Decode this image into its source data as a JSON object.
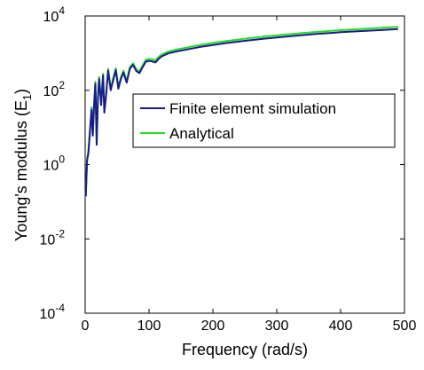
{
  "chart_data": {
    "type": "line",
    "title": "",
    "xlabel": "Frequency (rad/s)",
    "ylabel_main": "Young's modulus (E",
    "ylabel_sub": "1",
    "ylabel_close": ")",
    "xlim": [
      0,
      500
    ],
    "ylim": [
      0.0001,
      10000
    ],
    "yscale": "log",
    "grid": false,
    "legend_placement": "center-right",
    "x_ticks": [
      0,
      100,
      200,
      300,
      400,
      500
    ],
    "x_tick_labels": [
      "0",
      "100",
      "200",
      "300",
      "400",
      "500"
    ],
    "y_ticks": [
      {
        "value": 0.0001,
        "base": "10",
        "exp": "-4"
      },
      {
        "value": 0.01,
        "base": "10",
        "exp": "-2"
      },
      {
        "value": 1,
        "base": "10",
        "exp": "0"
      },
      {
        "value": 100,
        "base": "10",
        "exp": "2"
      },
      {
        "value": 10000,
        "base": "10",
        "exp": "4"
      }
    ],
    "series": [
      {
        "name": "Finite element simulation",
        "color": "#1a1a8c",
        "x": [
          1,
          3,
          5,
          8,
          10,
          12,
          14,
          16,
          18,
          20,
          22,
          25,
          28,
          30,
          33,
          36,
          40,
          44,
          48,
          52,
          56,
          60,
          65,
          70,
          75,
          80,
          85,
          90,
          95,
          100,
          105,
          110,
          115,
          120,
          130,
          140,
          150,
          160,
          170,
          180,
          200,
          220,
          250,
          280,
          300,
          330,
          360,
          400,
          430,
          460,
          490
        ],
        "y": [
          0.14,
          1.3,
          2.0,
          10,
          30,
          6,
          40,
          150,
          3.4,
          60,
          200,
          40,
          250,
          25,
          80,
          340,
          100,
          190,
          350,
          110,
          200,
          300,
          160,
          380,
          480,
          330,
          290,
          420,
          590,
          620,
          600,
          560,
          700,
          820,
          980,
          1080,
          1170,
          1260,
          1360,
          1470,
          1660,
          1860,
          2150,
          2450,
          2650,
          2950,
          3250,
          3650,
          3900,
          4150,
          4450
        ]
      },
      {
        "name": "Analytical",
        "color": "#22dd22",
        "x": [
          1,
          3,
          5,
          8,
          10,
          12,
          14,
          16,
          18,
          20,
          22,
          25,
          28,
          30,
          33,
          36,
          40,
          44,
          48,
          52,
          56,
          60,
          65,
          70,
          75,
          80,
          85,
          90,
          95,
          100,
          105,
          110,
          115,
          120,
          130,
          140,
          150,
          160,
          170,
          180,
          200,
          220,
          250,
          280,
          300,
          330,
          360,
          400,
          430,
          460,
          490
        ],
        "y": [
          0.15,
          1.5,
          2.3,
          12,
          35,
          7,
          45,
          170,
          4.0,
          70,
          230,
          45,
          280,
          30,
          90,
          380,
          115,
          215,
          390,
          125,
          225,
          340,
          180,
          420,
          530,
          370,
          320,
          470,
          660,
          700,
          680,
          640,
          800,
          920,
          1100,
          1220,
          1320,
          1420,
          1540,
          1660,
          1880,
          2100,
          2450,
          2780,
          3000,
          3350,
          3700,
          4150,
          4450,
          4750,
          5100
        ]
      }
    ]
  }
}
